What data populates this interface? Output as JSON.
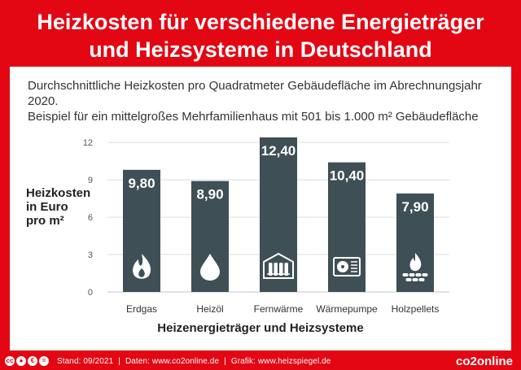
{
  "title": {
    "line1": "Heizkosten für verschiedene Energieträger",
    "line2": "und Heizsysteme in Deutschland"
  },
  "subtitle": {
    "line1": "Durchschnittliche Heizkosten pro Quadratmeter Gebäudefläche im Abrechnungsjahr 2020.",
    "line2": "Beispiel für ein mittelgroßes Mehrfamilienhaus mit 501 bis 1.000 m² Gebäudefläche"
  },
  "chart_data": {
    "type": "bar",
    "categories": [
      "Erdgas",
      "Heizöl",
      "Fernwärme",
      "Wärmepumpe",
      "Holzpellets"
    ],
    "values": [
      9.8,
      8.9,
      12.4,
      10.4,
      7.9
    ],
    "value_labels": [
      "9,80",
      "8,90",
      "12,40",
      "10,40",
      "7,90"
    ],
    "icons": [
      "flame-icon",
      "oil-drop-icon",
      "radiator-icon",
      "heat-pump-icon",
      "pellet-fire-icon"
    ],
    "ylabel_lines": [
      "Heizkosten",
      "in Euro",
      "pro m²"
    ],
    "xlabel": "Heizenergieträger und Heizsysteme",
    "ylim": [
      0,
      12.4
    ],
    "yticks": [
      0,
      3,
      6,
      9,
      12
    ],
    "grid": true,
    "bar_color": "#3e4f55",
    "grid_color": "#d9dde0"
  },
  "footer": {
    "license_icons": [
      "cc",
      "by",
      "nc",
      "nd"
    ],
    "stand": "Stand: 09/2021",
    "daten": "Daten: www.co2online.de",
    "grafik": "Grafik: www.heizspiegel.de",
    "brand": "co2online"
  },
  "colors": {
    "accent": "#e30613",
    "panel": "#ffffff",
    "text": "#333333"
  }
}
